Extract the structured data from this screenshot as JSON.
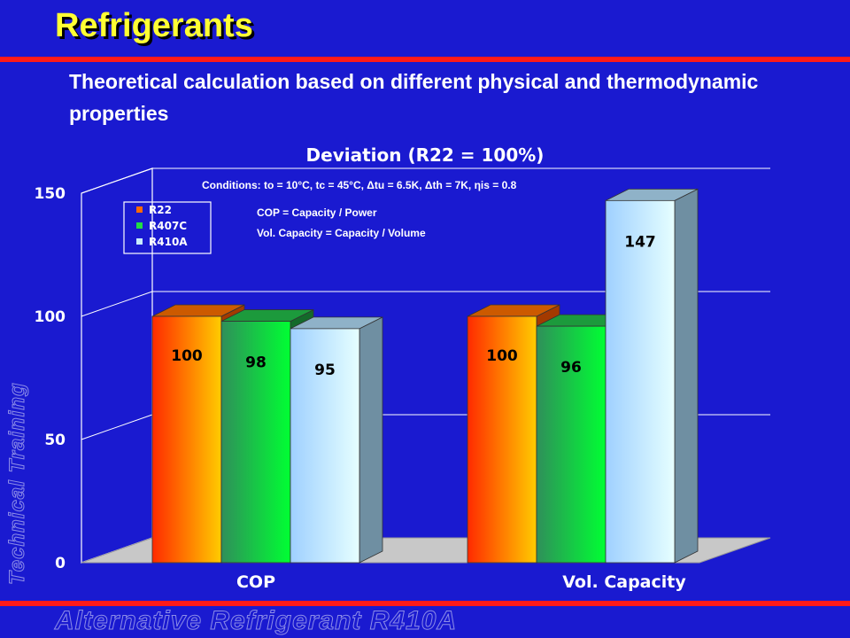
{
  "slide": {
    "title": "Refrigerants",
    "subtitle": "Theoretical calculation based on different physical  and thermodynamic properties",
    "footer": "Alternative Refrigerant R410A",
    "side_label": "Technical Training"
  },
  "chart_data": {
    "type": "bar",
    "title": "Deviation (R22 = 100%)",
    "categories": [
      "COP",
      "Vol. Capacity"
    ],
    "series": [
      {
        "name": "R22",
        "values": [
          100,
          100
        ],
        "color": "#ff6a00"
      },
      {
        "name": "R407C",
        "values": [
          98,
          96
        ],
        "color": "#22dd44"
      },
      {
        "name": "R410A",
        "values": [
          95,
          147
        ],
        "color": "#c8ecff"
      }
    ],
    "ylim": [
      0,
      150
    ],
    "yticks": [
      0,
      50,
      100,
      150
    ],
    "grid": true,
    "legend": "top-left",
    "annotations": {
      "conditions": "Conditions: to = 10°C, tc = 45°C, Δtu = 6.5K, Δth = 7K, ηis = 0.8",
      "cop_def": "COP = Capacity / Power",
      "volcap_def": "Vol. Capacity = Capacity / Volume"
    }
  }
}
